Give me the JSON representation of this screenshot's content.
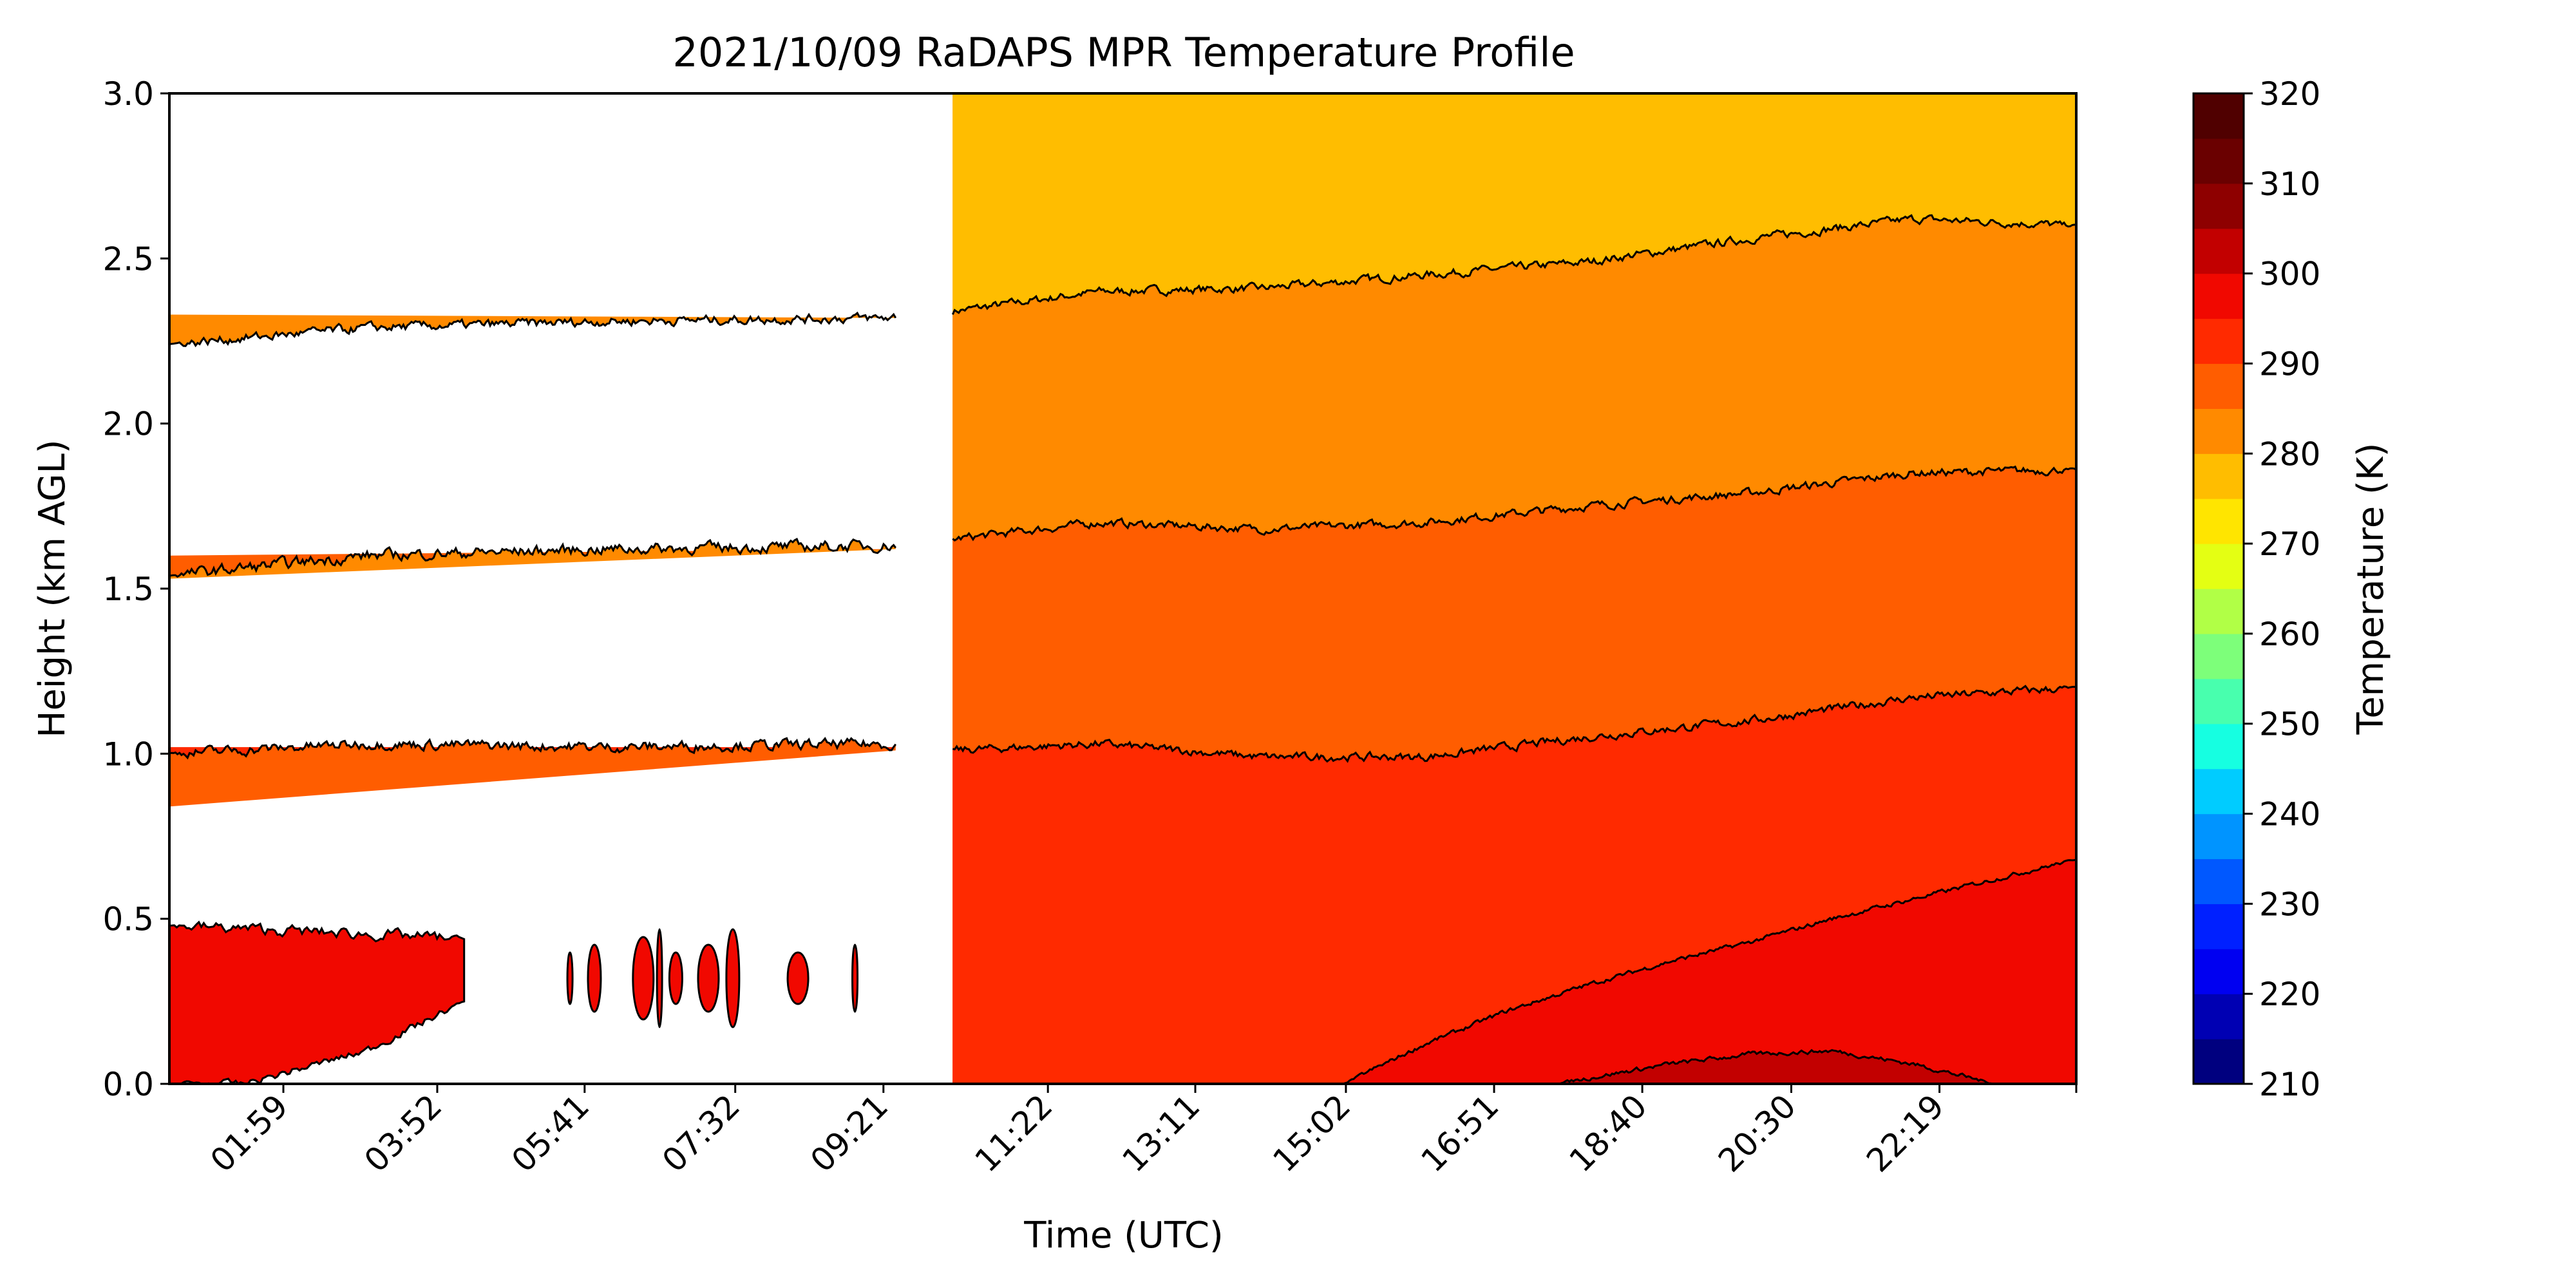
{
  "chart_data": {
    "type": "heatmap",
    "subtype": "filled-contour",
    "title": "2021/10/09 RaDAPS MPR Temperature Profile",
    "xlabel": "Time (UTC)",
    "ylabel": "Height (km AGL)",
    "ylim": [
      0.0,
      3.0
    ],
    "xlim_hours": [
      0.58,
      24.0
    ],
    "x_tick_labels": [
      "01:59",
      "03:52",
      "05:41",
      "07:32",
      "09:21",
      "11:22",
      "13:11",
      "15:02",
      "16:51",
      "18:40",
      "20:30",
      "22:19"
    ],
    "x_tick_hours": [
      1.98,
      3.87,
      5.68,
      7.53,
      9.35,
      11.37,
      13.18,
      15.03,
      16.85,
      18.67,
      20.5,
      22.32
    ],
    "y_ticks": [
      0.0,
      0.5,
      1.0,
      1.5,
      2.0,
      2.5,
      3.0
    ],
    "y_tick_labels": [
      "0.0",
      "0.5",
      "1.0",
      "1.5",
      "2.0",
      "2.5",
      "3.0"
    ],
    "data_gap_hours": [
      9.5,
      10.2
    ],
    "colorbar": {
      "label": "Temperature (K)",
      "range": [
        210,
        320
      ],
      "step": 5,
      "ticks": [
        210,
        220,
        230,
        240,
        250,
        260,
        270,
        280,
        290,
        300,
        310,
        320
      ],
      "tick_labels": [
        "210",
        "220",
        "230",
        "240",
        "250",
        "260",
        "270",
        "280",
        "290",
        "300",
        "310",
        "320"
      ],
      "colors": [
        "#00007f",
        "#0000b3",
        "#0000f1",
        "#0020ff",
        "#0058ff",
        "#0094ff",
        "#00ccff",
        "#16ffe1",
        "#48ffae",
        "#7dff7a",
        "#b1ff46",
        "#e4ff13",
        "#ffe500",
        "#ffbd00",
        "#ff8a00",
        "#ff5d00",
        "#ff2a00",
        "#f10800",
        "#c20000",
        "#8e0000",
        "#6a0000",
        "#500000"
      ]
    },
    "contour_boundaries_km": [
      {
        "level_K": 285,
        "hours": [
          0.58,
          3,
          6,
          9.4,
          10.2,
          12,
          14,
          16,
          18,
          20,
          22,
          24
        ],
        "height": [
          2.24,
          2.29,
          2.31,
          2.32,
          2.34,
          2.4,
          2.41,
          2.45,
          2.49,
          2.56,
          2.62,
          2.6
        ]
      },
      {
        "level_K": 290,
        "hours": [
          0.58,
          3,
          6,
          9.4,
          10.2,
          12,
          14,
          16,
          18,
          20,
          22,
          24
        ],
        "height": [
          1.54,
          1.6,
          1.62,
          1.63,
          1.65,
          1.7,
          1.68,
          1.7,
          1.75,
          1.79,
          1.85,
          1.86
        ]
      },
      {
        "level_K": 295,
        "hours": [
          0.58,
          3,
          6,
          9.4,
          10.2,
          12,
          14,
          16,
          18,
          20,
          22,
          24
        ],
        "height": [
          1.0,
          1.03,
          1.02,
          1.03,
          1.01,
          1.03,
          0.99,
          0.99,
          1.05,
          1.1,
          1.17,
          1.2
        ]
      },
      {
        "level_K": 300,
        "hours": [
          15.0,
          16,
          17,
          18,
          19,
          20,
          21,
          22,
          23,
          24
        ],
        "height": [
          0.0,
          0.12,
          0.22,
          0.3,
          0.37,
          0.43,
          0.5,
          0.56,
          0.62,
          0.68
        ]
      },
      {
        "level_K": 305,
        "hours": [
          17.6,
          19,
          20,
          21,
          22,
          23.0
        ],
        "height": [
          0.0,
          0.06,
          0.09,
          0.1,
          0.06,
          0.0
        ]
      }
    ],
    "early_period_fill": {
      "band_285_upper": {
        "hours": [
          0.58,
          9.4
        ],
        "height": [
          2.33,
          2.32
        ]
      },
      "band_290_lower": {
        "hours": [
          0.58,
          9.4
        ],
        "height": [
          1.6,
          1.62
        ]
      },
      "band_295_lower": {
        "hours": [
          0.58,
          9.4
        ],
        "height": [
          0.84,
          1.01
        ]
      },
      "surface_blob_top_km": 0.5,
      "surface_blob_end_hours": 4.2,
      "isolated_cells_hours": [
        5.5,
        5.8,
        6.4,
        6.6,
        6.8,
        7.2,
        7.5,
        7.5,
        8.3,
        9.0
      ]
    }
  }
}
